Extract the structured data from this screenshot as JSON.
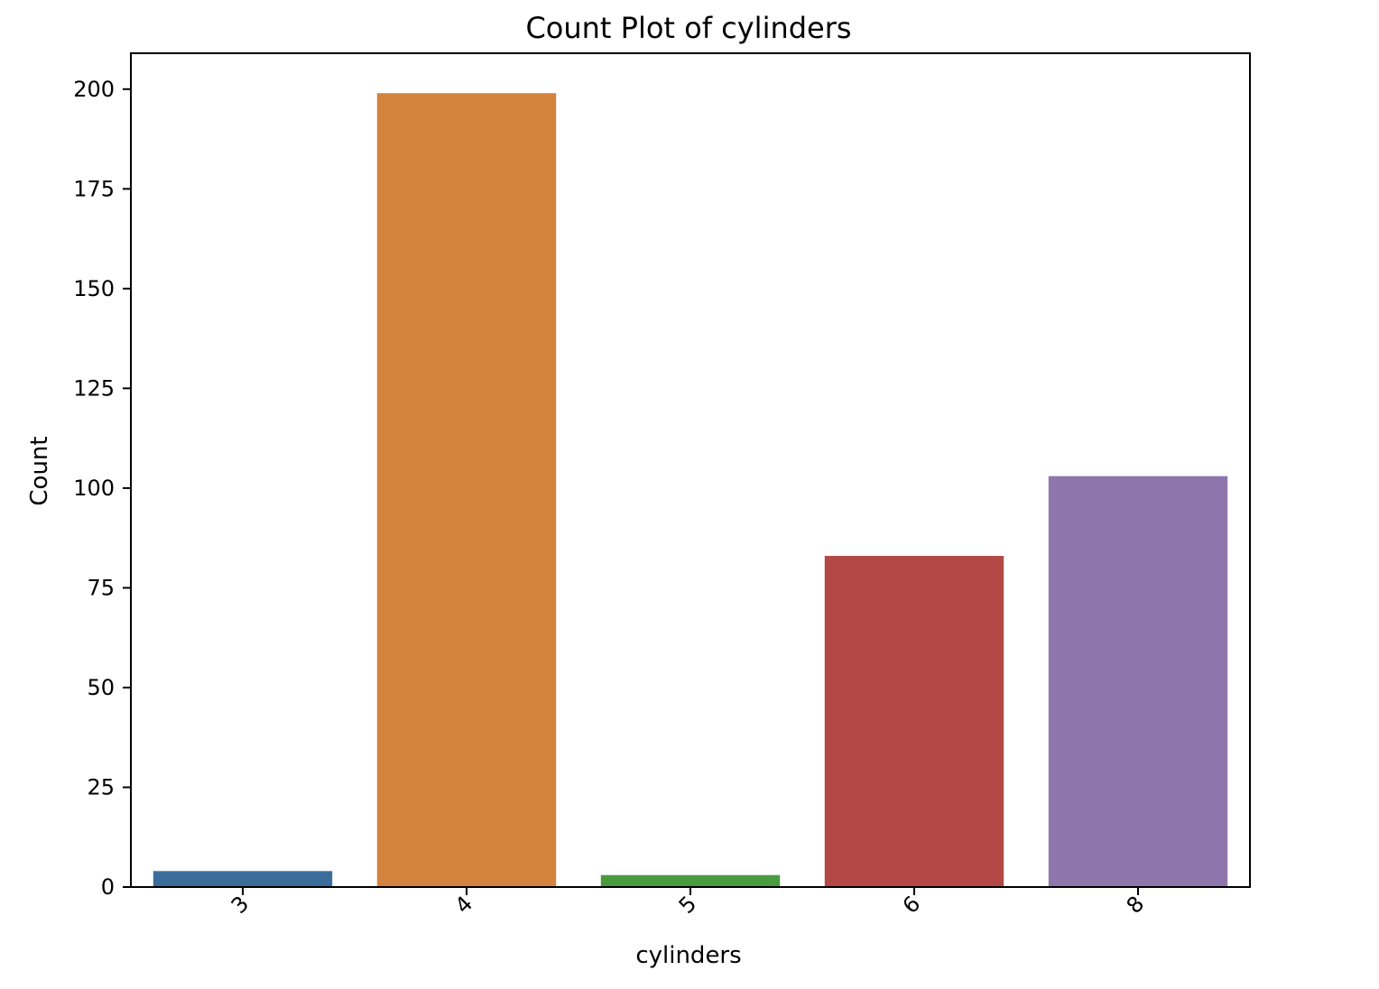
{
  "chart_data": {
    "type": "bar",
    "title": "Count Plot of cylinders",
    "xlabel": "cylinders",
    "ylabel": "Count",
    "categories": [
      "3",
      "4",
      "5",
      "6",
      "8"
    ],
    "values": [
      4,
      199,
      3,
      83,
      103
    ],
    "colors": [
      "#3a6d9a",
      "#d4843e",
      "#4a9a40",
      "#b34844",
      "#8e76ac"
    ],
    "ylim": [
      0,
      209
    ],
    "yticks": [
      0,
      25,
      50,
      75,
      100,
      125,
      150,
      175,
      200
    ],
    "grid": false,
    "legend": "none",
    "xtick_rotation_deg": 45
  }
}
